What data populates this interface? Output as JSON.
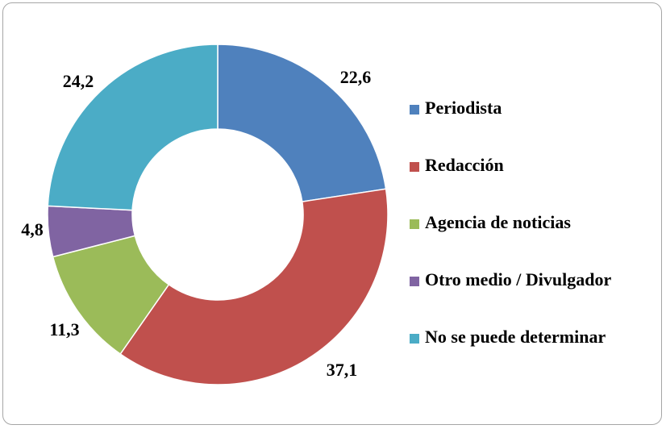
{
  "chart_data": {
    "type": "pie",
    "donut": true,
    "title": "",
    "categories": [
      "Periodista",
      "Redacción",
      "Agencia de noticias",
      "Otro medio / Divulgador",
      "No se puede determinar"
    ],
    "values": [
      22.6,
      37.1,
      11.3,
      4.8,
      24.2
    ],
    "value_labels": [
      "22,6",
      "37,1",
      "11,3",
      "4,8",
      "24,2"
    ],
    "colors": [
      "#4f81bd",
      "#c0504d",
      "#9bbb59",
      "#8064a2",
      "#4bacc6"
    ],
    "legend_position": "right"
  }
}
